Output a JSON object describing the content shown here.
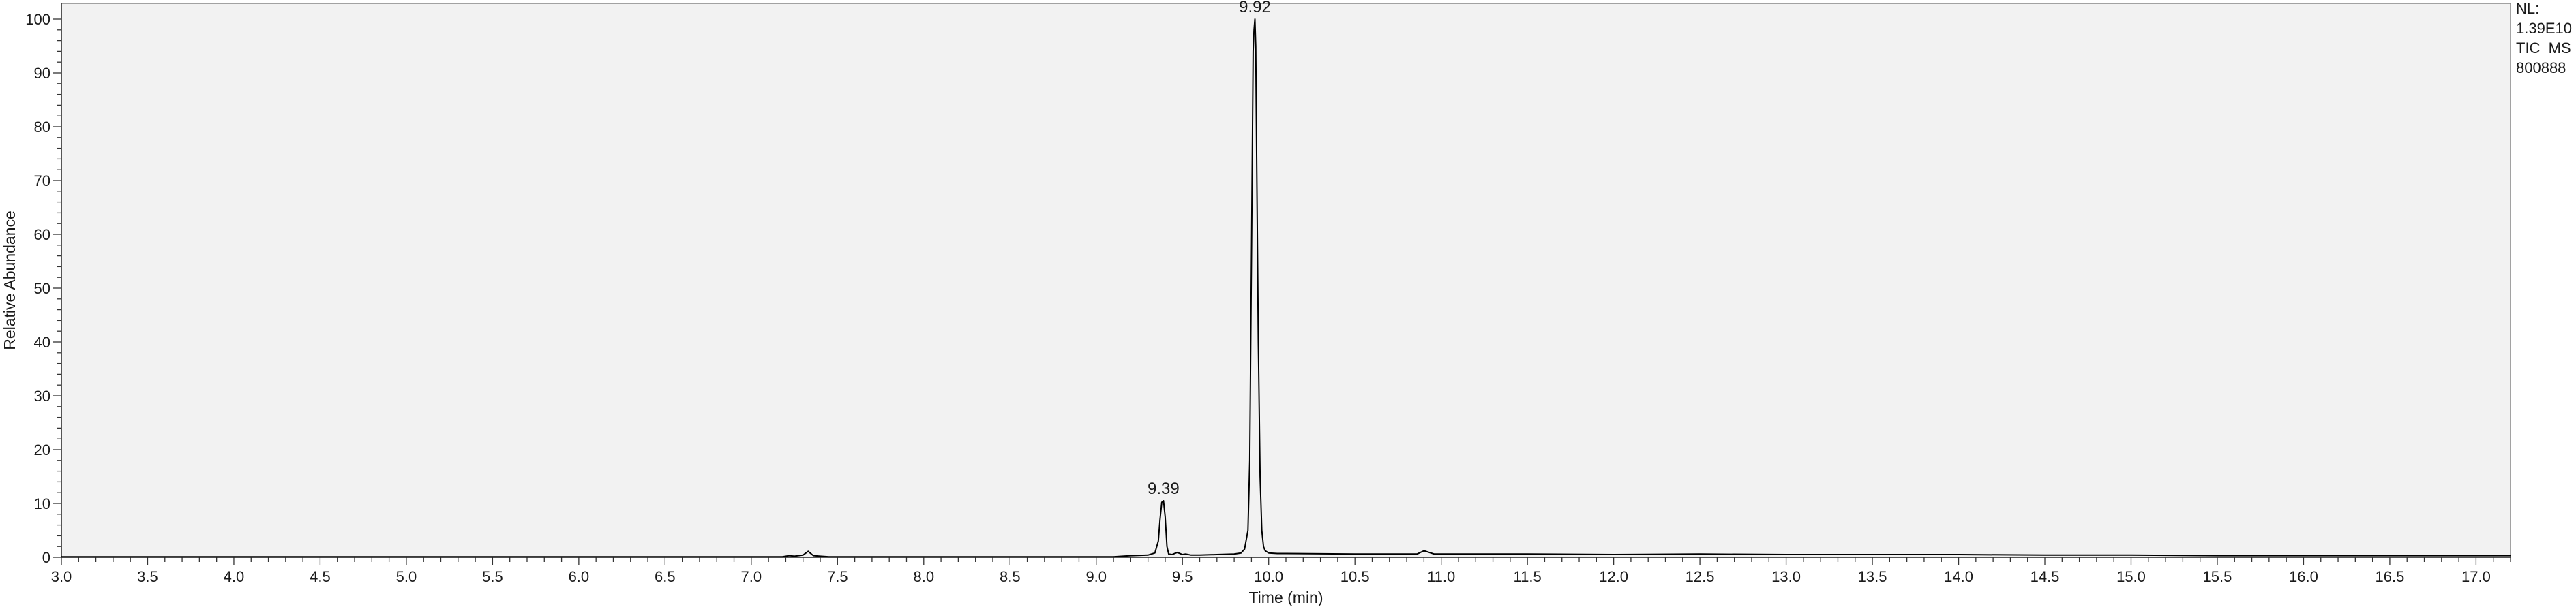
{
  "chart_data": {
    "type": "line",
    "xlabel": "Time (min)",
    "ylabel": "Relative Abundance",
    "xlim": [
      3.0,
      17.2
    ],
    "ylim": [
      0,
      100
    ],
    "x_ticks": [
      "3.0",
      "3.5",
      "4.0",
      "4.5",
      "5.0",
      "5.5",
      "6.0",
      "6.5",
      "7.0",
      "7.5",
      "8.0",
      "8.5",
      "9.0",
      "9.5",
      "10.0",
      "10.5",
      "11.0",
      "11.5",
      "12.0",
      "12.5",
      "13.0",
      "13.5",
      "14.0",
      "14.5",
      "15.0",
      "15.5",
      "16.0",
      "16.5",
      "17.0"
    ],
    "y_ticks": [
      "0",
      "10",
      "20",
      "30",
      "40",
      "50",
      "60",
      "70",
      "80",
      "90",
      "100"
    ],
    "grid": false,
    "info": [
      "NL:",
      "1.39E10",
      "TIC  MS",
      "800888"
    ],
    "peak_labels": [
      {
        "x": 9.39,
        "y": 10.5,
        "text": "9.39"
      },
      {
        "x": 9.92,
        "y": 100,
        "text": "9.92"
      }
    ],
    "series": [
      {
        "color": "#000000",
        "x": [
          3.0,
          7.18,
          7.22,
          7.25,
          7.3,
          7.33,
          7.36,
          7.4,
          7.45,
          9.1,
          9.2,
          9.3,
          9.34,
          9.36,
          9.37,
          9.38,
          9.39,
          9.4,
          9.41,
          9.42,
          9.44,
          9.47,
          9.5,
          9.52,
          9.55,
          9.6,
          9.7,
          9.8,
          9.84,
          9.86,
          9.88,
          9.89,
          9.9,
          9.91,
          9.915,
          9.92,
          9.925,
          9.93,
          9.94,
          9.95,
          9.96,
          9.97,
          9.98,
          10.0,
          10.05,
          10.1,
          10.5,
          10.86,
          10.9,
          10.93,
          10.96,
          11.0,
          11.5,
          12.0,
          12.5,
          13.0,
          13.5,
          14.0,
          14.5,
          15.0,
          15.5,
          16.0,
          16.5,
          17.0,
          17.2
        ],
        "y": [
          0.1,
          0.1,
          0.3,
          0.2,
          0.4,
          1.1,
          0.3,
          0.2,
          0.1,
          0.1,
          0.3,
          0.4,
          0.8,
          3.0,
          7.0,
          10.2,
          10.5,
          7.5,
          2.0,
          0.6,
          0.5,
          0.9,
          0.5,
          0.6,
          0.4,
          0.4,
          0.5,
          0.6,
          0.8,
          1.5,
          5.0,
          18.0,
          55.0,
          94.0,
          98.0,
          100.0,
          95.0,
          75.0,
          40.0,
          15.0,
          5.0,
          2.0,
          1.2,
          0.8,
          0.7,
          0.7,
          0.6,
          0.6,
          1.2,
          0.9,
          0.6,
          0.6,
          0.6,
          0.5,
          0.6,
          0.5,
          0.5,
          0.5,
          0.4,
          0.4,
          0.3,
          0.3,
          0.3,
          0.3,
          0.3
        ]
      }
    ]
  }
}
